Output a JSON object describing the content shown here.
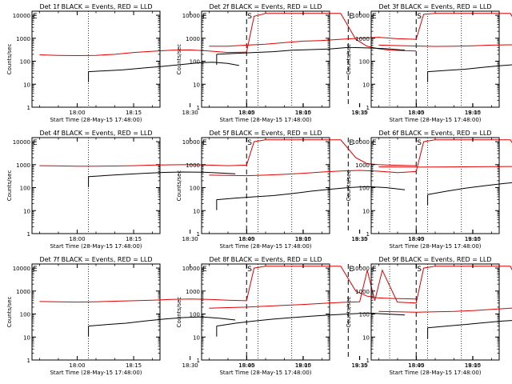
{
  "figure": {
    "colors": {
      "events": "#000000",
      "lld": "#e00000",
      "axes": "#000000",
      "background": "#ffffff"
    },
    "shared": {
      "xlabel": "Start Time (28-May-15 17:48:00)",
      "ylabel": "Counts/sec",
      "y_scale": "log",
      "yticks": [
        1,
        10,
        100,
        1000,
        10000
      ],
      "ytick_labels": [
        "1",
        "10",
        "100",
        "1000",
        "10000"
      ],
      "xlim_minutes_after_1800": [
        -12,
        22
      ],
      "dotted_lines_at": [
        "18:03",
        "18:57",
        "19:23"
      ],
      "dashed_lines_at": [
        "18:45",
        "19:12"
      ],
      "markers": [
        {
          "label": "S",
          "at": "18:45"
        },
        {
          "label": "E",
          "at": "19:12"
        }
      ],
      "corner_markers": "E"
    }
  },
  "chart_data": [
    {
      "type": "line",
      "title": "Det 1f BLACK = Events, RED = LLD",
      "xlabel": "Start Time (28-May-15 17:48:00)",
      "ylabel": "Counts/sec",
      "xticklabels": [
        "18:00",
        "18:15",
        "18:30",
        "18:45",
        "19:00",
        "19:15"
      ],
      "ylim": [
        1,
        15000
      ],
      "series": [
        {
          "color": "black",
          "x": [
            "18:03",
            "18:07",
            "18:12",
            "18:17",
            "18:22",
            "18:27",
            "18:32",
            "18:36",
            "18:40",
            "18:43"
          ],
          "values": [
            35,
            38,
            42,
            50,
            58,
            70,
            85,
            90,
            80,
            65
          ]
        },
        {
          "color": "red",
          "x": [
            "17:50",
            "17:55",
            "18:00",
            "18:05",
            "18:10",
            "18:15",
            "18:20",
            "18:25",
            "18:30",
            "18:35",
            "18:40",
            "18:45",
            "18:47",
            "18:50",
            "18:55",
            "19:00",
            "19:05",
            "19:10",
            "19:14",
            "19:17",
            "19:20",
            "19:23",
            "19:30"
          ],
          "values": [
            190,
            180,
            175,
            180,
            200,
            240,
            270,
            300,
            310,
            280,
            240,
            250,
            9000,
            12000,
            12000,
            12000,
            12000,
            12000,
            900,
            450,
            350,
            300,
            280
          ]
        }
      ]
    },
    {
      "type": "line",
      "title": "Det 2f BLACK = Events, RED = LLD",
      "xlabel": "Start Time (28-May-15 17:48:00)",
      "ylabel": "Counts/sec",
      "xticklabels": [
        "18:00",
        "18:15",
        "18:30",
        "18:45",
        "19:00",
        "19:15"
      ],
      "ylim": [
        1,
        15000
      ],
      "series": [
        {
          "color": "black",
          "x": [
            "17:52",
            "17:57",
            "18:02",
            "18:07",
            "18:12",
            "18:17",
            "18:22",
            "18:27",
            "18:32",
            "18:37",
            "18:42"
          ],
          "values": [
            200,
            220,
            240,
            260,
            300,
            320,
            340,
            400,
            380,
            350,
            300
          ]
        },
        {
          "color": "red",
          "x": [
            "17:50",
            "17:55",
            "18:00",
            "18:05",
            "18:10",
            "18:15",
            "18:20",
            "18:25",
            "18:30",
            "18:35",
            "18:40",
            "18:45",
            "18:47",
            "18:50",
            "18:55",
            "19:00",
            "19:05",
            "19:10",
            "19:14",
            "19:17",
            "19:20",
            "19:23",
            "19:30"
          ],
          "values": [
            450,
            450,
            500,
            550,
            650,
            750,
            800,
            900,
            1000,
            1100,
            950,
            900,
            11000,
            12000,
            12000,
            12000,
            12000,
            12000,
            1000,
            700,
            600,
            550,
            500
          ]
        }
      ]
    },
    {
      "type": "line",
      "title": "Det 3f BLACK = Events, RED = LLD",
      "xlabel": "Start Time (28-May-15 17:48:00)",
      "ylabel": "Counts/sec",
      "xticklabels": [
        "18:00",
        "18:15",
        "18:30",
        "18:45",
        "19:00",
        "19:15"
      ],
      "ylim": [
        1,
        15000
      ],
      "series": [
        {
          "color": "black",
          "x": [
            "18:03",
            "18:08",
            "18:13",
            "18:18",
            "18:23",
            "18:28",
            "18:33",
            "18:38",
            "18:42"
          ],
          "values": [
            35,
            40,
            45,
            55,
            65,
            75,
            80,
            70,
            55
          ]
        },
        {
          "color": "red",
          "x": [
            "17:50",
            "17:55",
            "18:00",
            "18:05",
            "18:10",
            "18:15",
            "18:20",
            "18:25",
            "18:30",
            "18:35",
            "18:40",
            "18:45",
            "18:47",
            "18:50",
            "18:55",
            "19:00",
            "19:05",
            "19:10",
            "19:14",
            "19:17",
            "19:20",
            "19:23",
            "19:30"
          ],
          "values": [
            500,
            480,
            460,
            440,
            450,
            470,
            500,
            520,
            530,
            500,
            450,
            440,
            10000,
            12000,
            12000,
            12000,
            12000,
            12000,
            900,
            500,
            450,
            420,
            400
          ]
        }
      ]
    },
    {
      "type": "line",
      "title": "Det 4f BLACK = Events, RED = LLD",
      "xlabel": "Start Time (28-May-15 17:48:00)",
      "ylabel": "Counts/sec",
      "xticklabels": [
        "18:00",
        "18:15",
        "18:30",
        "18:45",
        "19:00",
        "19:15"
      ],
      "ylim": [
        1,
        15000
      ],
      "series": [
        {
          "color": "black",
          "x": [
            "18:03",
            "18:08",
            "18:13",
            "18:18",
            "18:23",
            "18:28",
            "18:33",
            "18:38",
            "18:42"
          ],
          "values": [
            300,
            340,
            380,
            420,
            460,
            480,
            470,
            430,
            400
          ]
        },
        {
          "color": "red",
          "x": [
            "17:50",
            "17:55",
            "18:00",
            "18:05",
            "18:10",
            "18:15",
            "18:20",
            "18:25",
            "18:30",
            "18:35",
            "18:40",
            "18:45",
            "18:47",
            "18:50",
            "18:55",
            "19:00",
            "19:05",
            "19:10",
            "19:14",
            "19:17",
            "19:20",
            "19:23",
            "19:30"
          ],
          "values": [
            900,
            880,
            850,
            860,
            870,
            900,
            950,
            980,
            1000,
            950,
            900,
            950,
            10000,
            12000,
            12000,
            12000,
            12000,
            12000,
            2000,
            1100,
            1000,
            950,
            900
          ]
        }
      ]
    },
    {
      "type": "line",
      "title": "Det 5f BLACK = Events, RED = LLD",
      "xlabel": "Start Time (28-May-15 17:48:00)",
      "ylabel": "Counts/sec",
      "xticklabels": [
        "18:00",
        "18:15",
        "18:30",
        "18:45",
        "19:00",
        "19:15"
      ],
      "ylim": [
        1,
        15000
      ],
      "series": [
        {
          "color": "black",
          "x": [
            "17:52",
            "17:57",
            "18:02",
            "18:07",
            "18:12",
            "18:17",
            "18:22",
            "18:27",
            "18:32",
            "18:37",
            "18:42"
          ],
          "values": [
            30,
            35,
            40,
            45,
            55,
            70,
            85,
            100,
            110,
            100,
            80
          ]
        },
        {
          "color": "red",
          "x": [
            "17:50",
            "17:55",
            "18:00",
            "18:05",
            "18:10",
            "18:15",
            "18:20",
            "18:25",
            "18:30",
            "18:35",
            "18:40",
            "18:45",
            "18:47",
            "18:50",
            "18:55",
            "19:00",
            "19:05",
            "19:10",
            "19:14",
            "19:17",
            "19:20",
            "19:23",
            "19:30"
          ],
          "values": [
            350,
            340,
            330,
            350,
            380,
            420,
            480,
            530,
            560,
            520,
            450,
            500,
            10000,
            12000,
            12000,
            12000,
            12000,
            12000,
            1200,
            800,
            700,
            650,
            500
          ]
        }
      ]
    },
    {
      "type": "line",
      "title": "Det 6f BLACK = Events, RED = LLD",
      "xlabel": "Start Time (28-May-15 17:48:00)",
      "ylabel": "Counts/sec",
      "xticklabels": [
        "18:00",
        "18:15",
        "18:30",
        "18:45",
        "19:00",
        "19:15"
      ],
      "ylim": [
        1,
        15000
      ],
      "series": [
        {
          "color": "black",
          "x": [
            "18:03",
            "18:08",
            "18:13",
            "18:18",
            "18:23",
            "18:28",
            "18:33",
            "18:38",
            "18:42"
          ],
          "values": [
            50,
            70,
            95,
            120,
            150,
            180,
            160,
            120,
            80
          ]
        },
        {
          "color": "red",
          "x": [
            "17:50",
            "17:55",
            "18:00",
            "18:05",
            "18:10",
            "18:15",
            "18:20",
            "18:25",
            "18:30",
            "18:35",
            "18:40",
            "18:45",
            "18:47",
            "18:50",
            "18:55",
            "19:00",
            "19:05",
            "19:10",
            "19:14",
            "19:17",
            "19:20",
            "19:23",
            "19:30"
          ],
          "values": [
            800,
            790,
            780,
            790,
            800,
            810,
            820,
            830,
            840,
            830,
            810,
            800,
            10000,
            12000,
            12000,
            12000,
            12000,
            12000,
            1100,
            900,
            850,
            800,
            800
          ]
        }
      ]
    },
    {
      "type": "line",
      "title": "Det 7f BLACK = Events, RED = LLD",
      "xlabel": "Start Time (28-May-15 17:48:00)",
      "ylabel": "Counts/sec",
      "xticklabels": [
        "18:00",
        "18:15",
        "18:30",
        "18:45",
        "19:00",
        "19:15"
      ],
      "ylim": [
        1,
        15000
      ],
      "series": [
        {
          "color": "black",
          "x": [
            "18:03",
            "18:08",
            "18:13",
            "18:18",
            "18:23",
            "18:28",
            "18:33",
            "18:38",
            "18:42"
          ],
          "values": [
            30,
            35,
            40,
            50,
            60,
            70,
            75,
            65,
            55
          ]
        },
        {
          "color": "red",
          "x": [
            "17:50",
            "17:55",
            "18:00",
            "18:05",
            "18:10",
            "18:15",
            "18:20",
            "18:25",
            "18:30",
            "18:35",
            "18:40",
            "18:45",
            "18:47",
            "18:50",
            "18:55",
            "19:00",
            "19:05",
            "19:10",
            "19:14",
            "19:17",
            "19:20",
            "19:23",
            "19:30"
          ],
          "values": [
            350,
            340,
            330,
            340,
            360,
            380,
            400,
            430,
            450,
            430,
            400,
            380,
            10000,
            12000,
            12000,
            12000,
            12000,
            12000,
            1000,
            600,
            500,
            480,
            450
          ]
        }
      ]
    },
    {
      "type": "line",
      "title": "Det 8f BLACK = Events, RED = LLD",
      "xlabel": "Start Time (28-May-15 17:48:00)",
      "ylabel": "Counts/sec",
      "xticklabels": [
        "18:00",
        "18:15",
        "18:30",
        "18:45",
        "19:00",
        "19:15"
      ],
      "ylim": [
        1,
        15000
      ],
      "series": [
        {
          "color": "black",
          "x": [
            "17:52",
            "17:57",
            "18:02",
            "18:07",
            "18:12",
            "18:17",
            "18:22",
            "18:27",
            "18:32",
            "18:37",
            "18:42"
          ],
          "values": [
            30,
            40,
            50,
            60,
            70,
            80,
            90,
            100,
            110,
            100,
            90
          ]
        },
        {
          "color": "red",
          "x": [
            "17:50",
            "17:55",
            "18:00",
            "18:05",
            "18:10",
            "18:15",
            "18:20",
            "18:25",
            "18:30",
            "18:32",
            "18:34",
            "18:36",
            "18:40",
            "18:45",
            "18:47",
            "18:50",
            "18:55",
            "19:00",
            "19:05",
            "19:10",
            "19:14",
            "19:17",
            "19:20",
            "19:23",
            "19:30"
          ],
          "values": [
            180,
            190,
            200,
            220,
            240,
            260,
            290,
            320,
            340,
            8000,
            380,
            8000,
            330,
            300,
            10000,
            12000,
            12000,
            12000,
            12000,
            12000,
            600,
            300,
            280,
            250,
            200
          ]
        }
      ]
    },
    {
      "type": "line",
      "title": "Det 9f BLACK = Events, RED = LLD",
      "xlabel": "Start Time (28-May-15 17:48:00)",
      "ylabel": "Counts/sec",
      "xticklabels": [
        "18:00",
        "18:15",
        "18:30",
        "18:45",
        "19:00",
        "19:15"
      ],
      "ylim": [
        1,
        15000
      ],
      "series": [
        {
          "color": "black",
          "x": [
            "18:03",
            "18:08",
            "18:13",
            "18:18",
            "18:23",
            "18:28",
            "18:33",
            "18:38",
            "18:42"
          ],
          "values": [
            25,
            30,
            35,
            42,
            50,
            55,
            50,
            40,
            30
          ]
        },
        {
          "color": "red",
          "x": [
            "17:50",
            "17:55",
            "18:00",
            "18:05",
            "18:10",
            "18:15",
            "18:20",
            "18:25",
            "18:30",
            "18:35",
            "18:40",
            "18:45",
            "18:47",
            "18:50",
            "18:55",
            "19:00",
            "19:05",
            "19:10",
            "19:14",
            "19:17",
            "19:20",
            "19:23",
            "19:30"
          ],
          "values": [
            130,
            125,
            120,
            125,
            130,
            140,
            160,
            180,
            190,
            180,
            150,
            140,
            10000,
            12000,
            12000,
            12000,
            12000,
            12000,
            700,
            150,
            130,
            120,
            110
          ]
        }
      ]
    }
  ]
}
